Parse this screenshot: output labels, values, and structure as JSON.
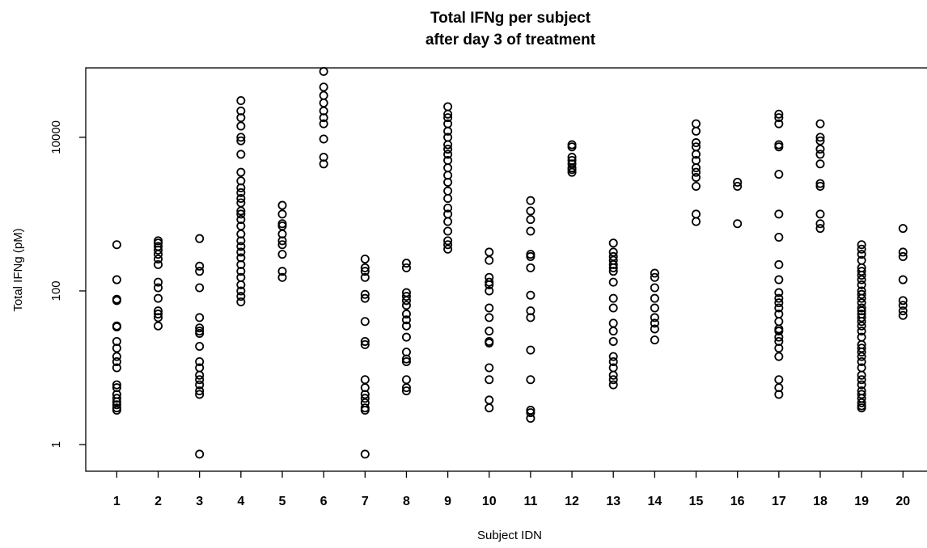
{
  "chart_data": {
    "type": "scatter",
    "title": [
      "Total IFNg per subject",
      "after day 3 of treatment"
    ],
    "xlabel": "Subject IDN",
    "ylabel": "Total IFNg (pM)",
    "yscale": "log",
    "ylim": [
      0.45,
      80000
    ],
    "xlim": [
      0.25,
      20.6
    ],
    "grid": false,
    "legend": "none",
    "x_ticks": [
      "1",
      "2",
      "3",
      "4",
      "5",
      "6",
      "7",
      "8",
      "9",
      "10",
      "11",
      "12",
      "13",
      "14",
      "15",
      "16",
      "17",
      "18",
      "19",
      "20"
    ],
    "y_ticks": [
      1,
      100,
      10000
    ],
    "y_tick_labels": [
      "1",
      "100",
      "10000"
    ],
    "marker": "open-circle",
    "series_color": "#000000",
    "points": {
      "1": [
        400,
        140,
        78,
        75,
        35,
        34,
        22,
        18,
        14,
        12,
        10,
        6,
        5.5,
        4.5,
        4,
        3.6,
        3.3,
        3.0,
        2.8
      ],
      "2": [
        450,
        420,
        380,
        340,
        300,
        260,
        220,
        130,
        110,
        80,
        55,
        50,
        45,
        35
      ],
      "3": [
        480,
        210,
        180,
        110,
        45,
        33,
        30,
        28,
        19,
        12,
        10,
        8,
        7,
        6,
        5,
        4.5,
        0.75
      ],
      "4": [
        30000,
        22000,
        18000,
        14000,
        10000,
        9000,
        6000,
        3500,
        2700,
        2200,
        1900,
        1600,
        1400,
        1100,
        1000,
        850,
        700,
        550,
        450,
        380,
        320,
        270,
        220,
        180,
        150,
        120,
        100,
        85,
        72
      ],
      "5": [
        1300,
        1000,
        750,
        700,
        550,
        450,
        400,
        300,
        180,
        150
      ],
      "6": [
        72000,
        45000,
        35000,
        28000,
        22000,
        18000,
        15000,
        9500,
        5500,
        4500
      ],
      "7": [
        260,
        200,
        180,
        150,
        90,
        80,
        40,
        22,
        20,
        7,
        5.5,
        4.5,
        4.0,
        3.5,
        3.0,
        2.8,
        0.75
      ],
      "8": [
        230,
        200,
        95,
        85,
        75,
        65,
        50,
        42,
        35,
        25,
        16,
        13,
        12,
        7,
        5.5,
        5
      ],
      "9": [
        25000,
        20000,
        18000,
        15000,
        12000,
        10000,
        8000,
        7000,
        6000,
        5000,
        4000,
        3200,
        2600,
        2000,
        1600,
        1200,
        1000,
        800,
        600,
        450,
        400,
        350
      ],
      "10": [
        320,
        250,
        150,
        130,
        120,
        100,
        60,
        45,
        30,
        22,
        21,
        10,
        7,
        3.8,
        3.0
      ],
      "11": [
        1500,
        1100,
        850,
        600,
        300,
        280,
        200,
        88,
        55,
        45,
        17,
        7,
        2.8,
        2.6,
        2.2
      ],
      "12": [
        8000,
        7500,
        5500,
        5000,
        4500,
        4000,
        3800,
        3500
      ],
      "13": [
        420,
        320,
        280,
        250,
        220,
        200,
        180,
        130,
        80,
        60,
        38,
        30,
        22,
        14,
        12,
        10,
        8,
        7,
        6
      ],
      "14": [
        170,
        150,
        110,
        80,
        60,
        45,
        38,
        32,
        23
      ],
      "15": [
        15000,
        12000,
        8500,
        7500,
        6000,
        5000,
        4000,
        3500,
        3000,
        2300,
        1000,
        800
      ],
      "16": [
        2600,
        2300,
        750
      ],
      "17": [
        20000,
        18000,
        15000,
        8000,
        7500,
        3300,
        1000,
        500,
        220,
        140,
        95,
        80,
        70,
        60,
        50,
        40,
        32,
        30,
        25,
        22,
        18,
        14,
        7,
        5.5,
        4.5
      ],
      "18": [
        15000,
        10000,
        9000,
        7000,
        6000,
        4500,
        2500,
        2300,
        1000,
        750,
        650
      ],
      "19": [
        400,
        350,
        300,
        250,
        200,
        180,
        160,
        140,
        120,
        100,
        90,
        80,
        70,
        60,
        55,
        50,
        45,
        40,
        35,
        30,
        25,
        20,
        18,
        16,
        14,
        12,
        10,
        8,
        7,
        6,
        5,
        4.5,
        4,
        3.5,
        3.2,
        3.0
      ],
      "20": [
        650,
        320,
        280,
        140,
        75,
        65,
        55,
        48
      ]
    }
  }
}
